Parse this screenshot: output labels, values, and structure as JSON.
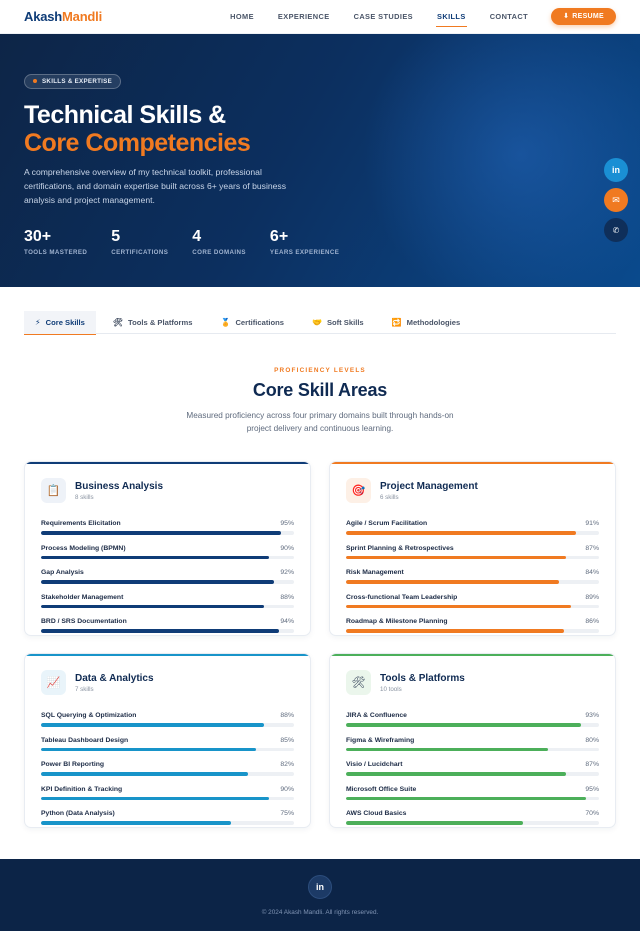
{
  "nav": {
    "logo_first": "Akash",
    "logo_second": "Mandli",
    "links": [
      "HOME",
      "EXPERIENCE",
      "CASE STUDIES",
      "SKILLS",
      "CONTACT"
    ],
    "active_link": "SKILLS",
    "resume_label": "RESUME",
    "resume_icon": "download-icon"
  },
  "hero": {
    "badge": "SKILLS & EXPERTISE",
    "title_line1": "Technical Skills &",
    "title_line2": "Core Competencies",
    "description": "A comprehensive overview of my technical toolkit, professional certifications, and domain expertise built across 6+ years of business analysis and project management.",
    "stats": [
      {
        "value": "30+",
        "label": "TOOLS MASTERED"
      },
      {
        "value": "5",
        "label": "CERTIFICATIONS"
      },
      {
        "value": "4",
        "label": "CORE DOMAINS"
      },
      {
        "value": "6+",
        "label": "YEARS EXPERIENCE"
      }
    ],
    "social_icons": [
      "linkedin-icon",
      "email-icon",
      "phone-icon"
    ]
  },
  "tabs": [
    {
      "label": "Core Skills",
      "icon": "⚡"
    },
    {
      "label": "Tools & Platforms",
      "icon": "🛠"
    },
    {
      "label": "Certifications",
      "icon": "🏅"
    },
    {
      "label": "Soft Skills",
      "icon": "🤝"
    },
    {
      "label": "Methodologies",
      "icon": "🔁"
    }
  ],
  "section": {
    "eyebrow": "PROFICIENCY LEVELS",
    "title": "Core Skill Areas",
    "description": "Measured proficiency across four primary domains built through hands-on project delivery and continuous learning."
  },
  "cards": [
    {
      "title": "Business Analysis",
      "count": "8 skills",
      "icon": "📋",
      "accent": "#0f3c77",
      "soft": "#eef2f8",
      "skills": [
        {
          "name": "Requirements Elicitation",
          "pct": "95%",
          "value": 95
        },
        {
          "name": "Process Modeling (BPMN)",
          "pct": "90%",
          "value": 90
        },
        {
          "name": "Gap Analysis",
          "pct": "92%",
          "value": 92
        },
        {
          "name": "Stakeholder Management",
          "pct": "88%",
          "value": 88
        },
        {
          "name": "BRD / SRS Documentation",
          "pct": "94%",
          "value": 94
        }
      ]
    },
    {
      "title": "Project Management",
      "count": "6 skills",
      "icon": "🎯",
      "accent": "#f07a21",
      "soft": "#fdf0e6",
      "skills": [
        {
          "name": "Agile / Scrum Facilitation",
          "pct": "91%",
          "value": 91
        },
        {
          "name": "Sprint Planning & Retrospectives",
          "pct": "87%",
          "value": 87
        },
        {
          "name": "Risk Management",
          "pct": "84%",
          "value": 84
        },
        {
          "name": "Cross-functional Team Leadership",
          "pct": "89%",
          "value": 89
        },
        {
          "name": "Roadmap & Milestone Planning",
          "pct": "86%",
          "value": 86
        }
      ]
    },
    {
      "title": "Data & Analytics",
      "count": "7 skills",
      "icon": "📈",
      "accent": "#1894c9",
      "soft": "#e9f4fa",
      "skills": [
        {
          "name": "SQL Querying & Optimization",
          "pct": "88%",
          "value": 88
        },
        {
          "name": "Tableau Dashboard Design",
          "pct": "85%",
          "value": 85
        },
        {
          "name": "Power BI Reporting",
          "pct": "82%",
          "value": 82
        },
        {
          "name": "KPI Definition & Tracking",
          "pct": "90%",
          "value": 90
        },
        {
          "name": "Python (Data Analysis)",
          "pct": "75%",
          "value": 75
        }
      ]
    },
    {
      "title": "Tools & Platforms",
      "count": "10 tools",
      "icon": "🛠",
      "accent": "#4caf5a",
      "soft": "#ebf6ec",
      "skills": [
        {
          "name": "JIRA & Confluence",
          "pct": "93%",
          "value": 93
        },
        {
          "name": "Figma & Wireframing",
          "pct": "80%",
          "value": 80
        },
        {
          "name": "Visio / Lucidchart",
          "pct": "87%",
          "value": 87
        },
        {
          "name": "Microsoft Office Suite",
          "pct": "95%",
          "value": 95
        },
        {
          "name": "AWS Cloud Basics",
          "pct": "70%",
          "value": 70
        }
      ]
    }
  ],
  "footer": {
    "copyright": "© 2024 Akash Mandli. All rights reserved."
  }
}
